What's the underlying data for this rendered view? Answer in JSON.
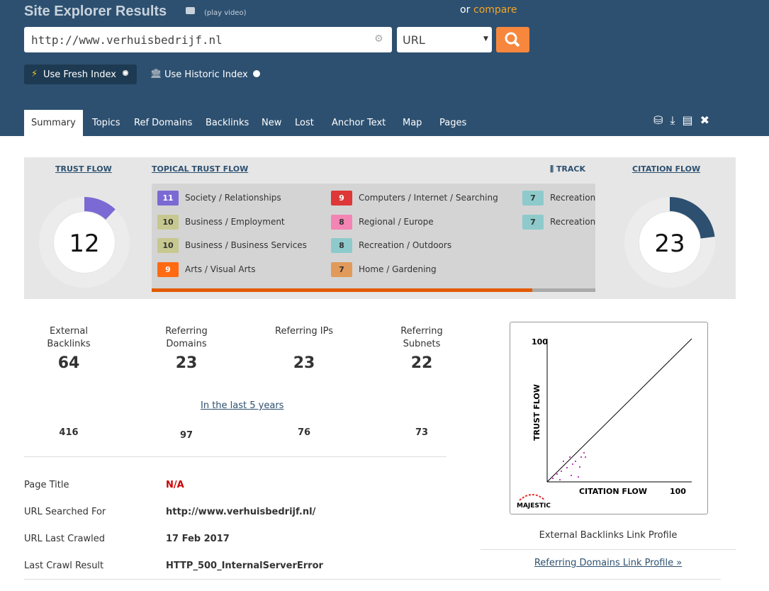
{
  "header": {
    "title": "Site Explorer Results",
    "play_video": "(play video)",
    "or": "or",
    "compare": "compare",
    "url_input": "http://www.verhuisbedrijf.nl",
    "mode_select": "URL",
    "fresh_index": "Use Fresh Index",
    "historic_index": "Use Historic Index"
  },
  "tabs": [
    "Summary",
    "Topics",
    "Ref Domains",
    "Backlinks",
    "New",
    "Lost",
    "Anchor Text",
    "Map",
    "Pages"
  ],
  "flow_panel": {
    "trust_flow": {
      "label": "TRUST FLOW",
      "value": 12
    },
    "topical_trust_flow": {
      "label": "TOPICAL TRUST FLOW",
      "track": "TRACK",
      "topics": [
        {
          "value": 11,
          "name": "Society / Relationships",
          "color": "#7b6ad3"
        },
        {
          "value": 10,
          "name": "Business / Employment",
          "color": "#c7c88f"
        },
        {
          "value": 10,
          "name": "Business / Business Services",
          "color": "#c7c88f"
        },
        {
          "value": 9,
          "name": "Arts / Visual Arts",
          "color": "#ff6a13"
        },
        {
          "value": 9,
          "name": "Computers / Internet / Searching",
          "color": "#dd3737"
        },
        {
          "value": 8,
          "name": "Regional / Europe",
          "color": "#f384b4"
        },
        {
          "value": 8,
          "name": "Recreation / Outdoors",
          "color": "#8ecacb"
        },
        {
          "value": 7,
          "name": "Home / Gardening",
          "color": "#e29a5a"
        },
        {
          "value": 7,
          "name": "Recreation",
          "color": "#8ecacb"
        },
        {
          "value": 7,
          "name": "Recreation",
          "color": "#8ecacb"
        }
      ]
    },
    "citation_flow": {
      "label": "CITATION FLOW",
      "value": 23
    }
  },
  "stats": [
    {
      "label": "External Backlinks",
      "value": 64,
      "historic": 416
    },
    {
      "label": "Referring Domains",
      "value": 23,
      "historic": 97
    },
    {
      "label": "Referring IPs",
      "value": 23,
      "historic": 76
    },
    {
      "label": "Referring Subnets",
      "value": 22,
      "historic": 73
    }
  ],
  "history_link": "In the last 5 years",
  "details": [
    {
      "label": "Page Title",
      "value": "N/A"
    },
    {
      "label": "URL Searched For",
      "value": "http://www.verhuisbedrijf.nl/"
    },
    {
      "label": "URL Last Crawled",
      "value": "17 Feb 2017"
    },
    {
      "label": "Last Crawl Result",
      "value": "HTTP_500_InternalServerError"
    }
  ],
  "flow_chart": {
    "y_label": "TRUST FLOW",
    "x_label": "CITATION FLOW",
    "y_max": 100,
    "x_max": 100,
    "brand": "MAJESTIC"
  },
  "links": {
    "external": "External Backlinks Link Profile",
    "referring": "Referring Domains Link Profile »"
  }
}
